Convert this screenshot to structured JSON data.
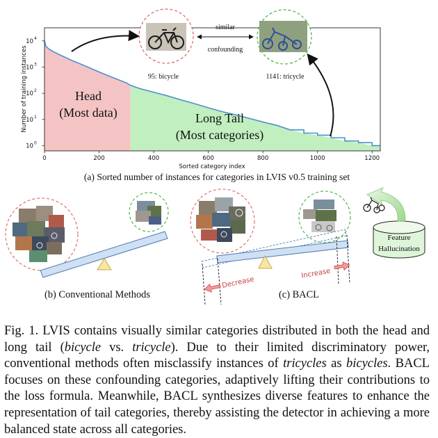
{
  "chart_data": {
    "type": "area",
    "xlabel": "Sorted category index",
    "ylabel": "Number of training instances",
    "yscale": "log",
    "xlim": [
      0,
      1230
    ],
    "ylim_exponents": [
      -0.2,
      4.5
    ],
    "x_ticks": [
      "0",
      "200",
      "400",
      "600",
      "800",
      "1000",
      "1200"
    ],
    "y_ticks": [
      "10",
      "10",
      "10",
      "10",
      "10"
    ],
    "y_tick_exponents": [
      "0",
      "1",
      "2",
      "3",
      "4"
    ],
    "head_split_index": 315,
    "series": [
      {
        "x": [
          0,
          5,
          15,
          30,
          60,
          100,
          150,
          200,
          250,
          300,
          315,
          350,
          400,
          450,
          500,
          550,
          600,
          650,
          700,
          750,
          800,
          850,
          900,
          950,
          1000,
          1050,
          1100,
          1150,
          1200,
          1230
        ],
        "y": [
          10000,
          6300,
          5000,
          4000,
          2800,
          1800,
          1100,
          650,
          400,
          250,
          200,
          150,
          110,
          80,
          56,
          40,
          28,
          20,
          15,
          11,
          8,
          6,
          4,
          3,
          2.5,
          2,
          1.5,
          1.3,
          1,
          1
        ]
      }
    ],
    "regions": [
      {
        "label_line1": "Head",
        "label_line2": "(Most data)",
        "color": "#f4c4c4"
      },
      {
        "label_line1": "Long Tail",
        "label_line2": "(Most categories)",
        "color": "#c2efbf"
      }
    ],
    "line_color": "#4a90d0"
  },
  "annotations": {
    "bicycle_label": "95: bicycle",
    "tricycle_label": "1141: tricycle",
    "similar": "similar",
    "confounding": "confounding"
  },
  "captions": {
    "a": "(a) Sorted number of instances for categories in LVIS v0.5 training set",
    "b": "(b)  Conventional Methods",
    "c": "(c) BACL"
  },
  "bacl": {
    "feature_line1": "Feature",
    "feature_line2": "Hallucination",
    "decrease": "Decrease",
    "increase": "Increase"
  },
  "caption": {
    "p1": "Fig. 1.   LVIS contains visually similar categories distributed in both the head and long tail (",
    "i1": "bicycle",
    "p2": " vs. ",
    "i2": "tricycle",
    "p3": "). Due to their limited discriminatory power, conventional methods often misclassify instances of ",
    "i3": "tricycles",
    "p4": " as ",
    "i4": "bicycles",
    "p5": ". BACL focuses on these confounding categories, adaptively lifting their contributions to the loss formula. Meanwhile, BACL synthesizes diverse features to enhance the representation of tail categories, thereby assisting the detector in achieving a more balanced state across all categories."
  },
  "colors": {
    "red_dashed": "#e06060",
    "green_dashed": "#3cb33c",
    "beam_fill": "#cfe0f3",
    "beam_stroke": "#4a78b8",
    "fulcrum": "#f6e7a6",
    "arrow_red": "#f29a9a",
    "cylinder": "#dff5da"
  }
}
